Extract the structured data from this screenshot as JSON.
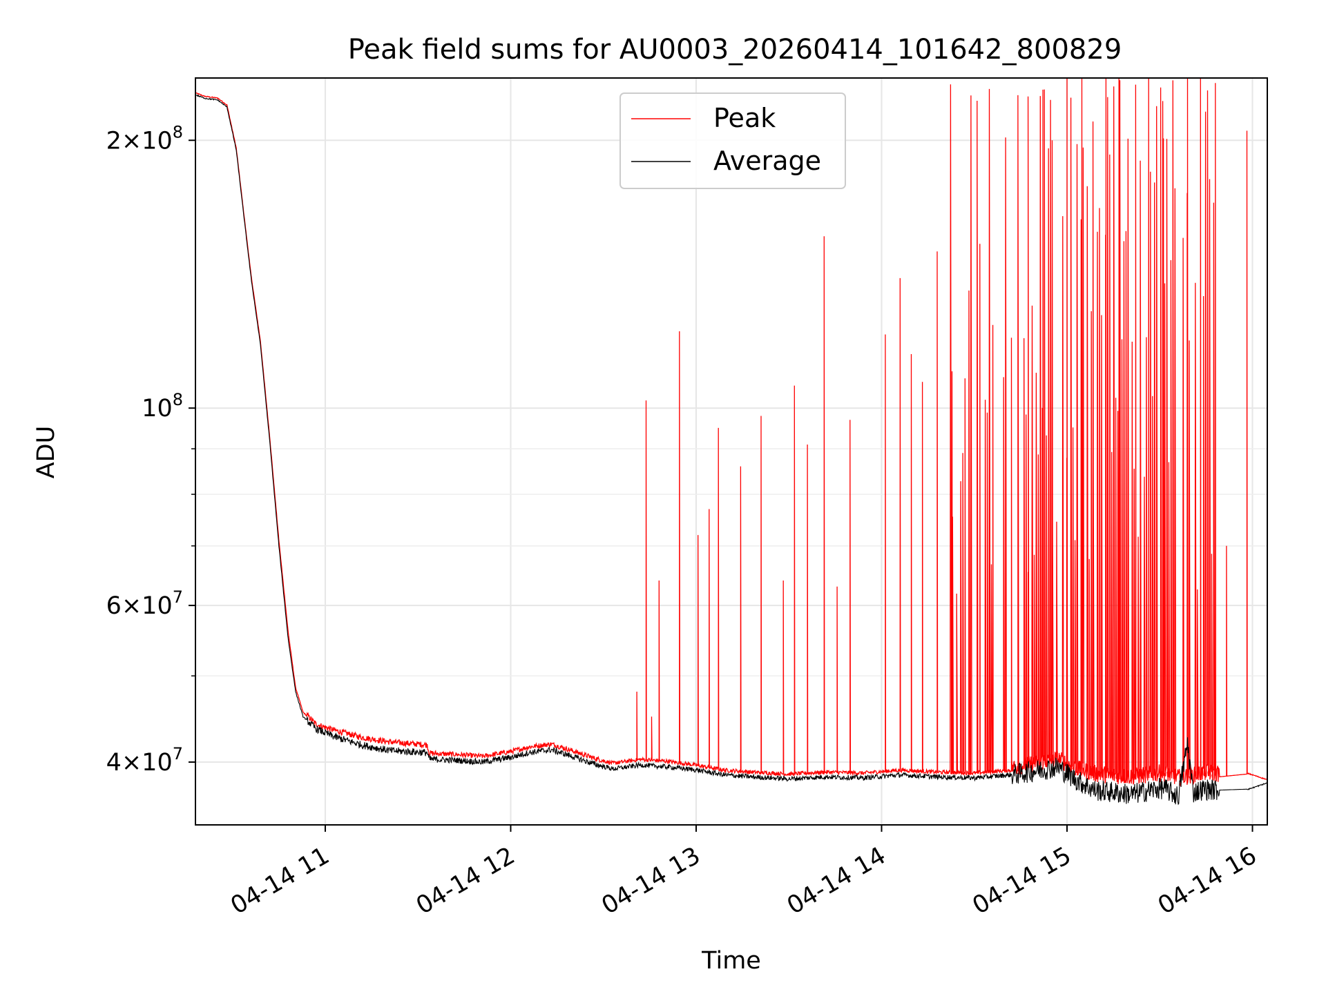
{
  "chart_data": {
    "type": "line",
    "title": "Peak field sums for AU0003_20260414_101642_800829",
    "xlabel": "Time",
    "ylabel": "ADU",
    "yscale": "log",
    "grid": true,
    "xlim_hours": [
      10.3,
      16.08
    ],
    "ylim": [
      34000000,
      235000000
    ],
    "x_ticks": [
      {
        "value": 11,
        "label": "04-14 11"
      },
      {
        "value": 12,
        "label": "04-14 12"
      },
      {
        "value": 13,
        "label": "04-14 13"
      },
      {
        "value": 14,
        "label": "04-14 14"
      },
      {
        "value": 15,
        "label": "04-14 15"
      },
      {
        "value": 16,
        "label": "04-14 16"
      }
    ],
    "y_ticks": [
      {
        "value": 40000000,
        "base": "4",
        "exp": "7"
      },
      {
        "value": 60000000,
        "base": "6",
        "exp": "7"
      },
      {
        "value": 100000000,
        "base": "",
        "exp": "8"
      },
      {
        "value": 200000000,
        "base": "2",
        "exp": "8"
      }
    ],
    "y_minor_ticks": [
      50000000,
      70000000,
      80000000,
      90000000
    ],
    "legend": {
      "position": "top-center",
      "entries": [
        {
          "label": "Peak",
          "color": "#ff0000"
        },
        {
          "label": "Average",
          "color": "#000000"
        }
      ]
    },
    "series": [
      {
        "name": "Average",
        "color": "#000000",
        "points": [
          [
            10.3,
            225000000
          ],
          [
            10.35,
            223000000
          ],
          [
            10.42,
            222000000
          ],
          [
            10.47,
            218000000
          ],
          [
            10.52,
            195000000
          ],
          [
            10.56,
            165000000
          ],
          [
            10.6,
            140000000
          ],
          [
            10.65,
            118000000
          ],
          [
            10.7,
            92000000
          ],
          [
            10.75,
            70000000
          ],
          [
            10.8,
            55000000
          ],
          [
            10.84,
            48000000
          ],
          [
            10.88,
            45000000
          ],
          [
            10.95,
            43600000
          ],
          [
            11.05,
            42700000
          ],
          [
            11.2,
            41800000
          ],
          [
            11.35,
            41200000
          ],
          [
            11.55,
            41000000
          ],
          [
            11.56,
            40300000
          ],
          [
            11.7,
            40200000
          ],
          [
            11.85,
            40000000
          ],
          [
            12.0,
            40500000
          ],
          [
            12.1,
            41000000
          ],
          [
            12.22,
            41300000
          ],
          [
            12.3,
            40800000
          ],
          [
            12.45,
            39800000
          ],
          [
            12.55,
            39300000
          ],
          [
            12.7,
            39700000
          ],
          [
            12.85,
            39500000
          ],
          [
            13.0,
            39200000
          ],
          [
            13.15,
            38700000
          ],
          [
            13.3,
            38500000
          ],
          [
            13.5,
            38300000
          ],
          [
            13.7,
            38500000
          ],
          [
            13.9,
            38400000
          ],
          [
            14.1,
            38700000
          ],
          [
            14.3,
            38500000
          ],
          [
            14.5,
            38400000
          ],
          [
            14.7,
            38700000
          ],
          [
            14.85,
            39200000
          ],
          [
            14.95,
            39500000
          ],
          [
            15.05,
            38200000
          ],
          [
            15.15,
            37200000
          ],
          [
            15.25,
            37000000
          ],
          [
            15.35,
            36800000
          ],
          [
            15.45,
            37200000
          ],
          [
            15.52,
            37400000
          ],
          [
            15.6,
            36600000
          ],
          [
            15.65,
            42000000
          ],
          [
            15.68,
            37000000
          ],
          [
            15.74,
            37300000
          ],
          [
            15.82,
            37200000
          ],
          [
            15.98,
            37300000
          ],
          [
            16.08,
            37900000
          ]
        ]
      },
      {
        "name": "Peak",
        "color": "#ff0000",
        "baseline": [
          [
            10.3,
            226000000
          ],
          [
            10.35,
            224000000
          ],
          [
            10.42,
            223000000
          ],
          [
            10.47,
            219000000
          ],
          [
            10.52,
            196000000
          ],
          [
            10.56,
            166000000
          ],
          [
            10.6,
            141000000
          ],
          [
            10.65,
            119000000
          ],
          [
            10.7,
            93000000
          ],
          [
            10.75,
            71000000
          ],
          [
            10.8,
            56000000
          ],
          [
            10.84,
            48500000
          ],
          [
            10.88,
            45500000
          ],
          [
            10.95,
            44000000
          ],
          [
            11.05,
            43300000
          ],
          [
            11.2,
            42500000
          ],
          [
            11.35,
            42000000
          ],
          [
            11.55,
            41700000
          ],
          [
            11.56,
            40800000
          ],
          [
            11.7,
            40700000
          ],
          [
            11.85,
            40500000
          ],
          [
            12.0,
            41000000
          ],
          [
            12.1,
            41500000
          ],
          [
            12.22,
            41800000
          ],
          [
            12.3,
            41300000
          ],
          [
            12.45,
            40300000
          ],
          [
            12.55,
            39800000
          ],
          [
            12.7,
            40200000
          ],
          [
            12.85,
            40000000
          ],
          [
            13.0,
            39600000
          ],
          [
            13.15,
            39100000
          ],
          [
            13.3,
            38900000
          ],
          [
            13.5,
            38700000
          ],
          [
            13.7,
            38900000
          ],
          [
            13.9,
            38800000
          ],
          [
            14.1,
            39100000
          ],
          [
            14.3,
            38900000
          ],
          [
            14.5,
            38800000
          ],
          [
            14.7,
            39100000
          ],
          [
            14.85,
            39600000
          ],
          [
            14.95,
            40000000
          ],
          [
            15.05,
            39000000
          ],
          [
            15.15,
            38500000
          ],
          [
            15.25,
            38300000
          ],
          [
            15.35,
            38200000
          ],
          [
            15.45,
            38400000
          ],
          [
            15.52,
            38600000
          ],
          [
            15.6,
            38100000
          ],
          [
            15.68,
            38300000
          ],
          [
            15.74,
            38600000
          ],
          [
            15.82,
            38500000
          ],
          [
            15.98,
            38800000
          ],
          [
            16.08,
            38200000
          ]
        ],
        "spikes": [
          [
            12.68,
            48000000
          ],
          [
            12.73,
            102000000
          ],
          [
            12.76,
            45000000
          ],
          [
            12.8,
            64000000
          ],
          [
            12.91,
            122000000
          ],
          [
            13.01,
            72000000
          ],
          [
            13.07,
            77000000
          ],
          [
            13.12,
            95000000
          ],
          [
            13.24,
            86000000
          ],
          [
            13.35,
            98000000
          ],
          [
            13.47,
            64000000
          ],
          [
            13.53,
            106000000
          ],
          [
            13.6,
            91000000
          ],
          [
            13.69,
            156000000
          ],
          [
            13.76,
            63000000
          ],
          [
            13.83,
            97000000
          ],
          [
            14.02,
            121000000
          ],
          [
            14.1,
            140000000
          ],
          [
            14.16,
            115000000
          ],
          [
            14.22,
            107000000
          ],
          [
            14.3,
            150000000
          ],
          [
            14.38,
            110000000
          ],
          [
            14.45,
            108000000
          ],
          [
            14.53,
            153000000
          ],
          [
            14.6,
            124000000
          ],
          [
            14.7,
            120000000
          ],
          [
            14.79,
            224000000
          ],
          [
            14.87,
            228000000
          ],
          [
            14.92,
            200000000
          ],
          [
            15.0,
            235000000
          ],
          [
            15.08,
            235000000
          ],
          [
            15.14,
            210000000
          ],
          [
            15.21,
            235000000
          ],
          [
            15.28,
            235000000
          ],
          [
            15.37,
            231000000
          ],
          [
            15.44,
            235000000
          ],
          [
            15.52,
            201000000
          ],
          [
            15.65,
            235000000
          ],
          [
            15.72,
            235000000
          ],
          [
            15.8,
            232000000
          ],
          [
            15.86,
            70000000
          ],
          [
            15.97,
            205000000
          ]
        ]
      }
    ]
  }
}
